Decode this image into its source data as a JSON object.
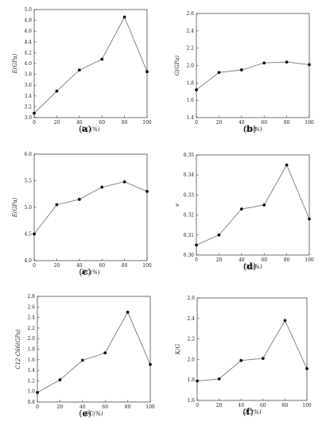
{
  "chart_data": [
    {
      "type": "line",
      "panel": "a",
      "xlabel": "DC(%)",
      "ylabel": "E(GPa)",
      "x": [
        0,
        20,
        40,
        60,
        80,
        100
      ],
      "values": [
        3.08,
        3.49,
        3.88,
        4.08,
        4.86,
        3.85
      ],
      "xlim": [
        0,
        100
      ],
      "ylim": [
        3.0,
        5.0
      ],
      "xticks": [
        "0",
        "20",
        "40",
        "60",
        "80",
        "100"
      ],
      "yticks": [
        "3.0",
        "3.2",
        "3.4",
        "3.6",
        "3.8",
        "4.0",
        "4.2",
        "4.4",
        "4.6",
        "4.8",
        "5.0"
      ],
      "grid": false
    },
    {
      "type": "line",
      "panel": "b",
      "xlabel": "DC(%)",
      "ylabel": "G(GPa)",
      "x": [
        0,
        20,
        40,
        60,
        80,
        100
      ],
      "values": [
        1.72,
        1.92,
        1.95,
        2.03,
        2.04,
        2.01
      ],
      "xlim": [
        0,
        100
      ],
      "ylim": [
        1.4,
        2.6
      ],
      "xticks": [
        "0",
        "20",
        "40",
        "60",
        "80",
        "100"
      ],
      "yticks": [
        "1.4",
        "1.6",
        "1.8",
        "2.0",
        "2.2",
        "2.4",
        "2.6"
      ],
      "grid": false
    },
    {
      "type": "line",
      "panel": "c",
      "xlabel": "DC(%)",
      "ylabel": "E(GPa)",
      "x": [
        0,
        20,
        40,
        60,
        80,
        100
      ],
      "values": [
        4.5,
        5.05,
        5.15,
        5.38,
        5.48,
        5.3
      ],
      "xlim": [
        0,
        100
      ],
      "ylim": [
        4.0,
        6.0
      ],
      "xticks": [
        "0",
        "20",
        "40",
        "60",
        "80",
        "100"
      ],
      "yticks": [
        "4.0",
        "4.5",
        "5.0",
        "5.5",
        "6.0"
      ],
      "grid": false
    },
    {
      "type": "line",
      "panel": "d",
      "xlabel": "DC(%)",
      "ylabel": "v",
      "x": [
        0,
        20,
        40,
        60,
        80,
        100
      ],
      "values": [
        0.305,
        0.31,
        0.323,
        0.325,
        0.345,
        0.318
      ],
      "xlim": [
        0,
        100
      ],
      "ylim": [
        0.3,
        0.35
      ],
      "xticks": [
        "0",
        "20",
        "40",
        "60",
        "80",
        "100"
      ],
      "yticks": [
        "0.30",
        "0.31",
        "0.32",
        "0.33",
        "0.34",
        "0.35"
      ],
      "grid": false
    },
    {
      "type": "line",
      "panel": "e",
      "xlabel": "DC(%)",
      "ylabel": "C12-C66(GPa)",
      "x": [
        0,
        20,
        40,
        60,
        80,
        100
      ],
      "values": [
        0.98,
        1.22,
        1.59,
        1.73,
        2.5,
        1.51
      ],
      "xlim": [
        0,
        100
      ],
      "ylim": [
        0.8,
        2.8
      ],
      "xticks": [
        "0",
        "20",
        "40",
        "60",
        "80",
        "100"
      ],
      "yticks": [
        "0.8",
        "1.0",
        "1.2",
        "1.4",
        "1.6",
        "1.8",
        "2.0",
        "2.2",
        "2.4",
        "2.6",
        "2.8"
      ],
      "grid": false
    },
    {
      "type": "line",
      "panel": "f",
      "xlabel": "DC(%)",
      "ylabel": "K/G",
      "x": [
        0,
        20,
        40,
        60,
        80,
        100
      ],
      "values": [
        1.79,
        1.81,
        1.99,
        2.01,
        2.38,
        1.91
      ],
      "xlim": [
        0,
        100
      ],
      "ylim": [
        1.6,
        2.6
      ],
      "xticks": [
        "0",
        "20",
        "40",
        "60",
        "80",
        "100"
      ],
      "yticks": [
        "1.6",
        "1.8",
        "2.0",
        "2.2",
        "2.4",
        "2.6"
      ],
      "grid": false
    }
  ],
  "style": {
    "line_color": "#7a7a7a",
    "marker_color": "#111111",
    "axis_color": "#333333"
  }
}
